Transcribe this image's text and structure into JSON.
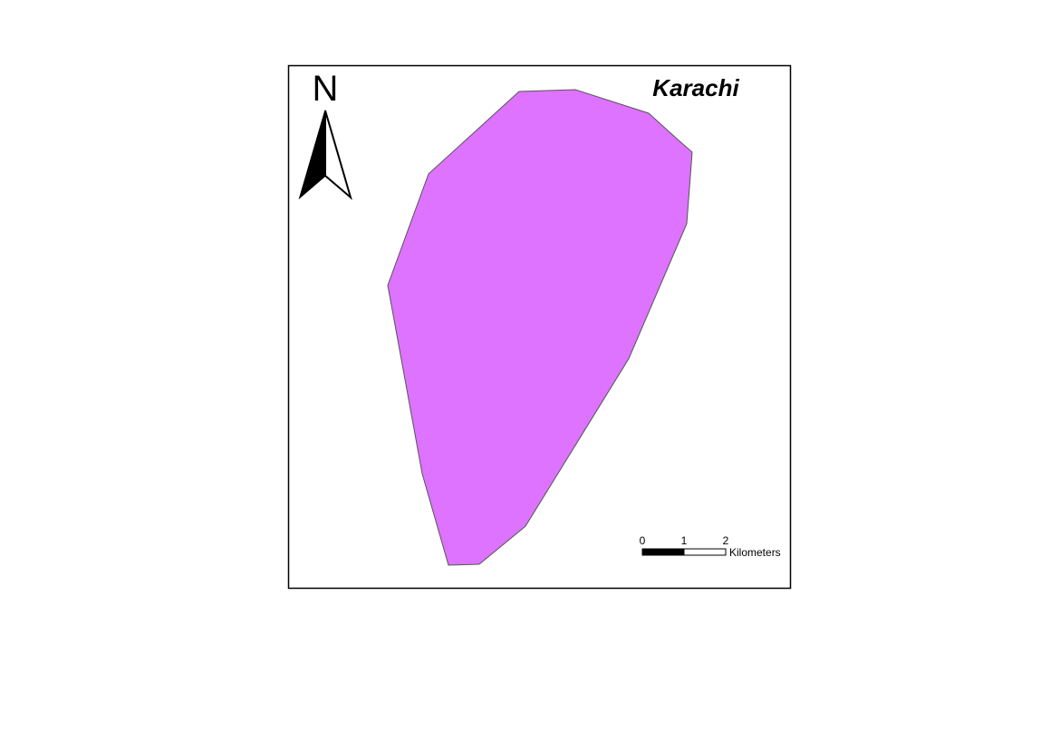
{
  "map": {
    "title": "Karachi",
    "region_fill": "#dd73ff",
    "region_stroke": "#555555",
    "frame_color": "#000000"
  },
  "north_arrow": {
    "letter": "N",
    "icon": "north-arrow-icon"
  },
  "scale_bar": {
    "ticks": [
      "0",
      "1",
      "2"
    ],
    "unit": "Kilometers"
  }
}
